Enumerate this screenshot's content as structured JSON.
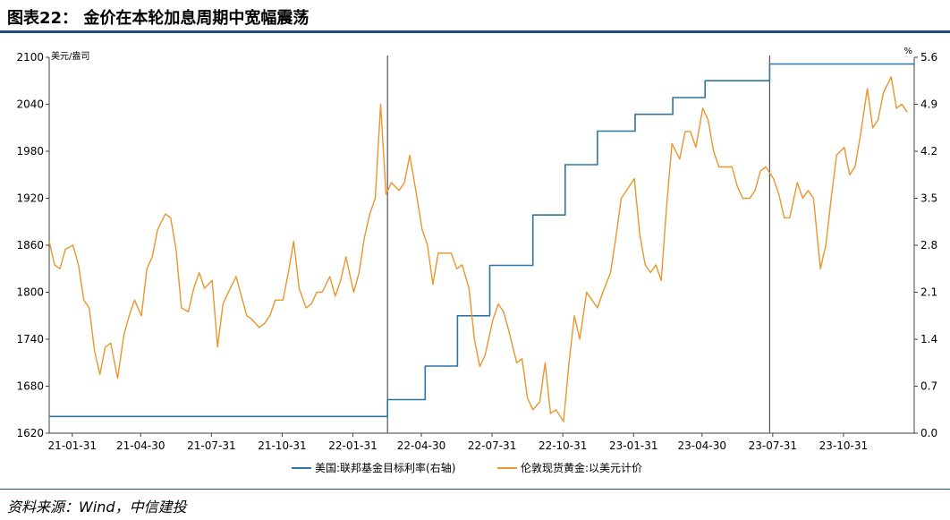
{
  "header": {
    "title": "图表22： 金价在本轮加息周期中宽幅震荡"
  },
  "footer": {
    "source": "资料来源：Wind，中信建投"
  },
  "colors": {
    "gold": "#e8962e",
    "rate": "#2e75a0",
    "rule": "#1f4e79",
    "axis": "#404040"
  },
  "chart_data": {
    "type": "line",
    "title": "",
    "x_ticks": [
      "21-01-31",
      "21-04-30",
      "21-07-31",
      "21-10-31",
      "22-01-31",
      "22-04-30",
      "22-07-31",
      "22-10-31",
      "23-01-31",
      "23-04-30",
      "23-07-31",
      "23-10-31"
    ],
    "x_range": [
      "2021-01-01",
      "2024-01-31"
    ],
    "y_left": {
      "unit": "美元/盎司",
      "ticks": [
        1620,
        1680,
        1740,
        1800,
        1860,
        1920,
        1980,
        2040,
        2100
      ],
      "range": [
        1620,
        2100
      ]
    },
    "y_right": {
      "unit": "%",
      "ticks": [
        "0.0",
        "0.7",
        "1.4",
        "2.1",
        "2.8",
        "3.5",
        "4.2",
        "4.9",
        "5.6"
      ],
      "range": [
        0,
        5.6
      ]
    },
    "legend": {
      "position": "bottom"
    },
    "vertical_markers": [
      "2022-03-17",
      "2023-07-27"
    ],
    "series": [
      {
        "name": "美国:联邦基金目标利率(右轴)",
        "axis": "right",
        "color": "#2e75a0",
        "step": true,
        "points": [
          [
            "2021-01-01",
            0.25
          ],
          [
            "2022-03-17",
            0.5
          ],
          [
            "2022-05-05",
            1.0
          ],
          [
            "2022-06-16",
            1.75
          ],
          [
            "2022-07-28",
            2.5
          ],
          [
            "2022-09-22",
            3.25
          ],
          [
            "2022-11-03",
            4.0
          ],
          [
            "2022-12-15",
            4.5
          ],
          [
            "2023-02-02",
            4.75
          ],
          [
            "2023-03-23",
            5.0
          ],
          [
            "2023-05-04",
            5.25
          ],
          [
            "2023-07-27",
            5.5
          ],
          [
            "2024-01-31",
            5.5
          ]
        ]
      },
      {
        "name": "伦敦现货黄金:以美元计价",
        "axis": "left",
        "color": "#e8962e",
        "step": false,
        "points": [
          [
            "2021-01-01",
            1865
          ],
          [
            "2021-01-08",
            1835
          ],
          [
            "2021-01-15",
            1830
          ],
          [
            "2021-01-22",
            1855
          ],
          [
            "2021-02-01",
            1860
          ],
          [
            "2021-02-08",
            1835
          ],
          [
            "2021-02-15",
            1790
          ],
          [
            "2021-02-22",
            1780
          ],
          [
            "2021-03-01",
            1725
          ],
          [
            "2021-03-08",
            1695
          ],
          [
            "2021-03-15",
            1730
          ],
          [
            "2021-03-22",
            1735
          ],
          [
            "2021-03-31",
            1690
          ],
          [
            "2021-04-08",
            1745
          ],
          [
            "2021-04-15",
            1770
          ],
          [
            "2021-04-22",
            1790
          ],
          [
            "2021-05-01",
            1770
          ],
          [
            "2021-05-08",
            1830
          ],
          [
            "2021-05-15",
            1845
          ],
          [
            "2021-05-22",
            1880
          ],
          [
            "2021-06-01",
            1900
          ],
          [
            "2021-06-08",
            1895
          ],
          [
            "2021-06-15",
            1855
          ],
          [
            "2021-06-22",
            1780
          ],
          [
            "2021-07-01",
            1775
          ],
          [
            "2021-07-08",
            1805
          ],
          [
            "2021-07-15",
            1825
          ],
          [
            "2021-07-22",
            1805
          ],
          [
            "2021-08-01",
            1815
          ],
          [
            "2021-08-08",
            1730
          ],
          [
            "2021-08-15",
            1785
          ],
          [
            "2021-08-22",
            1800
          ],
          [
            "2021-09-01",
            1820
          ],
          [
            "2021-09-08",
            1795
          ],
          [
            "2021-09-15",
            1770
          ],
          [
            "2021-09-22",
            1765
          ],
          [
            "2021-10-01",
            1755
          ],
          [
            "2021-10-08",
            1760
          ],
          [
            "2021-10-15",
            1770
          ],
          [
            "2021-10-22",
            1790
          ],
          [
            "2021-11-01",
            1790
          ],
          [
            "2021-11-08",
            1825
          ],
          [
            "2021-11-15",
            1865
          ],
          [
            "2021-11-22",
            1805
          ],
          [
            "2021-12-01",
            1780
          ],
          [
            "2021-12-08",
            1785
          ],
          [
            "2021-12-15",
            1800
          ],
          [
            "2021-12-22",
            1800
          ],
          [
            "2022-01-01",
            1820
          ],
          [
            "2022-01-08",
            1795
          ],
          [
            "2022-01-15",
            1815
          ],
          [
            "2022-01-22",
            1845
          ],
          [
            "2022-02-01",
            1800
          ],
          [
            "2022-02-08",
            1825
          ],
          [
            "2022-02-15",
            1870
          ],
          [
            "2022-02-22",
            1900
          ],
          [
            "2022-03-01",
            1920
          ],
          [
            "2022-03-08",
            2040
          ],
          [
            "2022-03-15",
            1925
          ],
          [
            "2022-03-22",
            1940
          ],
          [
            "2022-04-01",
            1930
          ],
          [
            "2022-04-08",
            1940
          ],
          [
            "2022-04-15",
            1975
          ],
          [
            "2022-04-22",
            1935
          ],
          [
            "2022-05-01",
            1880
          ],
          [
            "2022-05-08",
            1860
          ],
          [
            "2022-05-15",
            1810
          ],
          [
            "2022-05-22",
            1850
          ],
          [
            "2022-06-01",
            1850
          ],
          [
            "2022-06-08",
            1850
          ],
          [
            "2022-06-15",
            1830
          ],
          [
            "2022-06-22",
            1835
          ],
          [
            "2022-07-01",
            1805
          ],
          [
            "2022-07-08",
            1740
          ],
          [
            "2022-07-15",
            1705
          ],
          [
            "2022-07-22",
            1720
          ],
          [
            "2022-08-01",
            1765
          ],
          [
            "2022-08-08",
            1785
          ],
          [
            "2022-08-15",
            1775
          ],
          [
            "2022-08-22",
            1750
          ],
          [
            "2022-09-01",
            1710
          ],
          [
            "2022-09-08",
            1715
          ],
          [
            "2022-09-15",
            1665
          ],
          [
            "2022-09-22",
            1650
          ],
          [
            "2022-10-01",
            1660
          ],
          [
            "2022-10-08",
            1710
          ],
          [
            "2022-10-15",
            1645
          ],
          [
            "2022-10-22",
            1650
          ],
          [
            "2022-11-01",
            1635
          ],
          [
            "2022-11-08",
            1710
          ],
          [
            "2022-11-15",
            1770
          ],
          [
            "2022-11-22",
            1740
          ],
          [
            "2022-12-01",
            1800
          ],
          [
            "2022-12-08",
            1790
          ],
          [
            "2022-12-15",
            1780
          ],
          [
            "2022-12-22",
            1800
          ],
          [
            "2023-01-01",
            1825
          ],
          [
            "2023-01-08",
            1870
          ],
          [
            "2023-01-15",
            1920
          ],
          [
            "2023-01-22",
            1930
          ],
          [
            "2023-02-01",
            1945
          ],
          [
            "2023-02-08",
            1875
          ],
          [
            "2023-02-15",
            1835
          ],
          [
            "2023-02-22",
            1825
          ],
          [
            "2023-03-01",
            1835
          ],
          [
            "2023-03-08",
            1815
          ],
          [
            "2023-03-15",
            1910
          ],
          [
            "2023-03-22",
            1990
          ],
          [
            "2023-04-01",
            1970
          ],
          [
            "2023-04-08",
            2005
          ],
          [
            "2023-04-15",
            2005
          ],
          [
            "2023-04-22",
            1985
          ],
          [
            "2023-05-01",
            2035
          ],
          [
            "2023-05-08",
            2020
          ],
          [
            "2023-05-15",
            1980
          ],
          [
            "2023-05-22",
            1960
          ],
          [
            "2023-06-01",
            1960
          ],
          [
            "2023-06-08",
            1960
          ],
          [
            "2023-06-15",
            1935
          ],
          [
            "2023-06-22",
            1920
          ],
          [
            "2023-07-01",
            1920
          ],
          [
            "2023-07-08",
            1930
          ],
          [
            "2023-07-15",
            1955
          ],
          [
            "2023-07-22",
            1960
          ],
          [
            "2023-08-01",
            1945
          ],
          [
            "2023-08-08",
            1925
          ],
          [
            "2023-08-15",
            1895
          ],
          [
            "2023-08-22",
            1895
          ],
          [
            "2023-09-01",
            1940
          ],
          [
            "2023-09-08",
            1920
          ],
          [
            "2023-09-15",
            1930
          ],
          [
            "2023-09-22",
            1920
          ],
          [
            "2023-10-01",
            1830
          ],
          [
            "2023-10-08",
            1860
          ],
          [
            "2023-10-15",
            1920
          ],
          [
            "2023-10-22",
            1975
          ],
          [
            "2023-11-01",
            1985
          ],
          [
            "2023-11-08",
            1950
          ],
          [
            "2023-11-15",
            1960
          ],
          [
            "2023-11-22",
            2000
          ],
          [
            "2023-12-01",
            2060
          ],
          [
            "2023-12-08",
            2010
          ],
          [
            "2023-12-15",
            2020
          ],
          [
            "2023-12-22",
            2055
          ],
          [
            "2024-01-01",
            2075
          ],
          [
            "2024-01-08",
            2035
          ],
          [
            "2024-01-15",
            2040
          ],
          [
            "2024-01-22",
            2030
          ]
        ]
      }
    ]
  }
}
